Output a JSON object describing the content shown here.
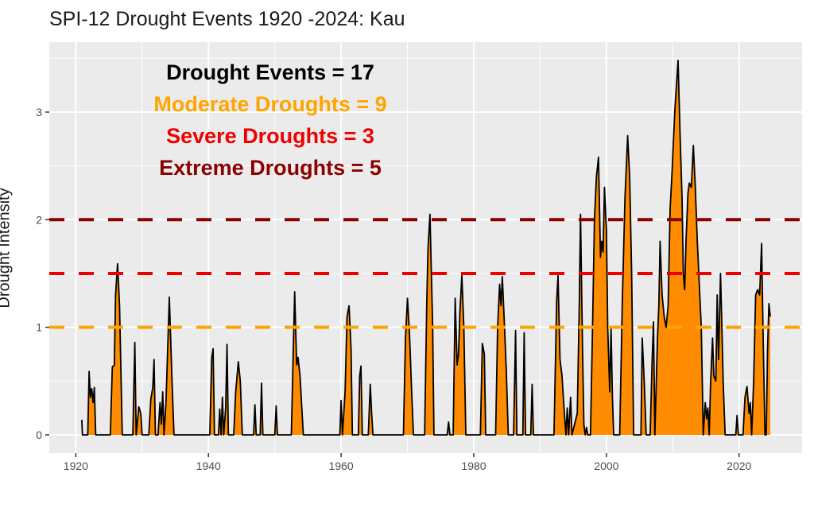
{
  "chart_data": {
    "type": "area",
    "title": "SPI-12 Drought Events 1920 -2024: Kau",
    "xlabel": "",
    "ylabel": "Drought Intensity",
    "xlim": [
      1916.0,
      2029.5
    ],
    "ylim": [
      -0.17,
      3.65
    ],
    "x_ticks": [
      1920,
      1940,
      1960,
      1980,
      2000,
      2020
    ],
    "x_tick_labels": [
      "1920",
      "1940",
      "1960",
      "1980",
      "2000",
      "2020"
    ],
    "y_ticks": [
      0,
      1,
      2,
      3
    ],
    "y_tick_labels": [
      "0",
      "1",
      "2",
      "3"
    ],
    "y_minor_ticks": [
      0.5,
      1.5,
      2.5,
      3.5
    ],
    "x_minor_ticks": [
      1930,
      1950,
      1970,
      1990,
      2010
    ],
    "grid": true,
    "fill_color": "#FF8C00",
    "line_color": "#000000",
    "panel_background": "#EBEBEB",
    "thresholds": [
      {
        "name": "Moderate",
        "value": 1.0,
        "color": "#FFA500",
        "style": "dashed"
      },
      {
        "name": "Severe",
        "value": 1.5,
        "color": "#EE0000",
        "style": "dashed"
      },
      {
        "name": "Extreme",
        "value": 2.0,
        "color": "#8B0000",
        "style": "dashed"
      }
    ],
    "annotations": [
      {
        "text": "Drought Events = 17",
        "color": "#000000"
      },
      {
        "text": "Moderate Droughts = 9",
        "color": "#FFA500"
      },
      {
        "text": "Severe Droughts = 3",
        "color": "#EE0000"
      },
      {
        "text": "Extreme Droughts = 5",
        "color": "#8B0000"
      }
    ],
    "series": [
      {
        "name": "SPI-12 drought intensity",
        "points": [
          [
            1920.9,
            0.14
          ],
          [
            1921.0,
            0.0
          ],
          [
            1921.8,
            0.0
          ],
          [
            1922.0,
            0.59
          ],
          [
            1922.2,
            0.35
          ],
          [
            1922.4,
            0.43
          ],
          [
            1922.6,
            0.3
          ],
          [
            1922.8,
            0.44
          ],
          [
            1923.0,
            0.0
          ],
          [
            1925.2,
            0.0
          ],
          [
            1925.5,
            0.63
          ],
          [
            1925.8,
            0.65
          ],
          [
            1926.0,
            1.3
          ],
          [
            1926.3,
            1.59
          ],
          [
            1926.6,
            1.2
          ],
          [
            1926.8,
            0.6
          ],
          [
            1927.0,
            0.0
          ],
          [
            1928.6,
            0.0
          ],
          [
            1928.9,
            0.86
          ],
          [
            1929.1,
            0.0
          ],
          [
            1929.5,
            0.26
          ],
          [
            1929.8,
            0.2
          ],
          [
            1930.0,
            0.0
          ],
          [
            1931.0,
            0.0
          ],
          [
            1931.3,
            0.33
          ],
          [
            1931.6,
            0.44
          ],
          [
            1931.8,
            0.7
          ],
          [
            1932.0,
            0.0
          ],
          [
            1932.4,
            0.0
          ],
          [
            1932.7,
            0.3
          ],
          [
            1932.9,
            0.1
          ],
          [
            1933.1,
            0.4
          ],
          [
            1933.3,
            0.0
          ],
          [
            1933.6,
            0.3
          ],
          [
            1934.1,
            1.28
          ],
          [
            1934.5,
            0.5
          ],
          [
            1934.8,
            0.0
          ],
          [
            1940.2,
            0.0
          ],
          [
            1940.5,
            0.72
          ],
          [
            1940.7,
            0.8
          ],
          [
            1940.9,
            0.0
          ],
          [
            1941.5,
            0.0
          ],
          [
            1941.7,
            0.24
          ],
          [
            1941.9,
            0.0
          ],
          [
            1942.1,
            0.35
          ],
          [
            1942.3,
            0.0
          ],
          [
            1942.6,
            0.25
          ],
          [
            1942.8,
            0.84
          ],
          [
            1943.0,
            0.0
          ],
          [
            1943.8,
            0.0
          ],
          [
            1944.1,
            0.4
          ],
          [
            1944.5,
            0.68
          ],
          [
            1944.8,
            0.5
          ],
          [
            1945.1,
            0.0
          ],
          [
            1946.8,
            0.0
          ],
          [
            1947.0,
            0.28
          ],
          [
            1947.2,
            0.0
          ],
          [
            1947.8,
            0.0
          ],
          [
            1948.0,
            0.48
          ],
          [
            1948.2,
            0.0
          ],
          [
            1950.0,
            0.0
          ],
          [
            1950.2,
            0.27
          ],
          [
            1950.4,
            0.0
          ],
          [
            1952.5,
            0.0
          ],
          [
            1952.8,
            0.8
          ],
          [
            1953.0,
            1.33
          ],
          [
            1953.3,
            0.65
          ],
          [
            1953.5,
            0.72
          ],
          [
            1953.8,
            0.55
          ],
          [
            1954.3,
            0.0
          ],
          [
            1959.8,
            0.0
          ],
          [
            1960.0,
            0.32
          ],
          [
            1960.2,
            0.0
          ],
          [
            1960.6,
            0.4
          ],
          [
            1960.9,
            1.1
          ],
          [
            1961.2,
            1.2
          ],
          [
            1961.5,
            0.8
          ],
          [
            1961.7,
            0.0
          ],
          [
            1962.6,
            0.0
          ],
          [
            1962.8,
            0.55
          ],
          [
            1963.0,
            0.64
          ],
          [
            1963.2,
            0.0
          ],
          [
            1964.1,
            0.0
          ],
          [
            1964.4,
            0.47
          ],
          [
            1964.6,
            0.2
          ],
          [
            1964.8,
            0.0
          ],
          [
            1969.4,
            0.0
          ],
          [
            1969.7,
            0.9
          ],
          [
            1970.0,
            1.27
          ],
          [
            1970.3,
            0.95
          ],
          [
            1970.6,
            0.45
          ],
          [
            1970.9,
            0.0
          ],
          [
            1972.6,
            0.0
          ],
          [
            1972.9,
            1.2
          ],
          [
            1973.1,
            1.73
          ],
          [
            1973.4,
            2.05
          ],
          [
            1973.8,
            1.0
          ],
          [
            1974.0,
            0.0
          ],
          [
            1976.0,
            0.0
          ],
          [
            1976.2,
            0.12
          ],
          [
            1976.4,
            0.0
          ],
          [
            1976.9,
            0.0
          ],
          [
            1977.2,
            1.27
          ],
          [
            1977.5,
            0.65
          ],
          [
            1977.7,
            0.75
          ],
          [
            1977.9,
            1.13
          ],
          [
            1978.2,
            1.48
          ],
          [
            1978.5,
            1.0
          ],
          [
            1978.8,
            0.0
          ],
          [
            1981.0,
            0.0
          ],
          [
            1981.3,
            0.85
          ],
          [
            1981.6,
            0.75
          ],
          [
            1981.8,
            0.0
          ],
          [
            1983.3,
            0.0
          ],
          [
            1983.6,
            1.0
          ],
          [
            1983.9,
            1.4
          ],
          [
            1984.1,
            1.2
          ],
          [
            1984.3,
            1.47
          ],
          [
            1984.6,
            1.05
          ],
          [
            1984.9,
            0.6
          ],
          [
            1985.2,
            0.0
          ],
          [
            1986.0,
            0.0
          ],
          [
            1986.3,
            0.97
          ],
          [
            1986.5,
            0.0
          ],
          [
            1987.4,
            0.0
          ],
          [
            1987.6,
            0.95
          ],
          [
            1987.8,
            0.0
          ],
          [
            1988.6,
            0.0
          ],
          [
            1988.8,
            0.47
          ],
          [
            1989.0,
            0.0
          ],
          [
            1992.1,
            0.0
          ],
          [
            1992.5,
            1.25
          ],
          [
            1992.7,
            1.48
          ],
          [
            1993.0,
            0.7
          ],
          [
            1993.3,
            0.55
          ],
          [
            1993.6,
            0.25
          ],
          [
            1993.9,
            0.0
          ],
          [
            1994.1,
            0.25
          ],
          [
            1994.3,
            0.0
          ],
          [
            1994.6,
            0.35
          ],
          [
            1994.8,
            0.0
          ],
          [
            1995.6,
            0.2
          ],
          [
            1995.9,
            1.2
          ],
          [
            1996.1,
            2.05
          ],
          [
            1996.4,
            0.8
          ],
          [
            1996.6,
            0.1
          ],
          [
            1996.8,
            0.0
          ],
          [
            1997.0,
            0.07
          ],
          [
            1997.2,
            0.0
          ],
          [
            1997.6,
            0.0
          ],
          [
            1997.9,
            0.95
          ],
          [
            1998.2,
            2.0
          ],
          [
            1998.5,
            2.4
          ],
          [
            1998.8,
            2.58
          ],
          [
            1999.1,
            1.65
          ],
          [
            1999.3,
            1.8
          ],
          [
            1999.5,
            1.7
          ],
          [
            1999.7,
            2.3
          ],
          [
            2000.0,
            1.9
          ],
          [
            2000.2,
            1.0
          ],
          [
            2000.5,
            0.4
          ],
          [
            2000.7,
            1.0
          ],
          [
            2000.9,
            0.35
          ],
          [
            2001.1,
            0.0
          ],
          [
            2002.0,
            0.0
          ],
          [
            2002.4,
            1.25
          ],
          [
            2002.8,
            2.2
          ],
          [
            2003.2,
            2.78
          ],
          [
            2003.5,
            2.4
          ],
          [
            2003.8,
            1.5
          ],
          [
            2004.1,
            0.0
          ],
          [
            2005.2,
            0.0
          ],
          [
            2005.4,
            0.9
          ],
          [
            2005.7,
            0.5
          ],
          [
            2006.0,
            0.0
          ],
          [
            2006.6,
            0.0
          ],
          [
            2006.9,
            0.7
          ],
          [
            2007.1,
            1.05
          ],
          [
            2007.3,
            0.0
          ],
          [
            2007.7,
            0.9
          ],
          [
            2007.9,
            1.2
          ],
          [
            2008.1,
            1.8
          ],
          [
            2008.4,
            1.3
          ],
          [
            2008.7,
            1.1
          ],
          [
            2009.0,
            1.0
          ],
          [
            2009.3,
            1.2
          ],
          [
            2009.6,
            2.1
          ],
          [
            2009.9,
            2.45
          ],
          [
            2010.3,
            3.0
          ],
          [
            2010.8,
            3.48
          ],
          [
            2011.1,
            2.8
          ],
          [
            2011.4,
            2.2
          ],
          [
            2011.6,
            1.5
          ],
          [
            2011.8,
            1.35
          ],
          [
            2012.0,
            1.8
          ],
          [
            2012.3,
            2.25
          ],
          [
            2012.5,
            2.34
          ],
          [
            2012.8,
            2.3
          ],
          [
            2013.1,
            2.69
          ],
          [
            2013.4,
            2.3
          ],
          [
            2013.7,
            1.8
          ],
          [
            2014.0,
            1.4
          ],
          [
            2014.3,
            1.0
          ],
          [
            2014.6,
            0.0
          ],
          [
            2014.9,
            0.3
          ],
          [
            2015.1,
            0.15
          ],
          [
            2015.3,
            0.25
          ],
          [
            2015.5,
            0.0
          ],
          [
            2015.7,
            0.48
          ],
          [
            2016.0,
            0.9
          ],
          [
            2016.2,
            0.55
          ],
          [
            2016.5,
            0.5
          ],
          [
            2016.7,
            1.3
          ],
          [
            2016.9,
            0.7
          ],
          [
            2017.2,
            1.5
          ],
          [
            2017.4,
            1.05
          ],
          [
            2017.6,
            0.5
          ],
          [
            2017.9,
            0.0
          ],
          [
            2019.5,
            0.0
          ],
          [
            2019.7,
            0.18
          ],
          [
            2019.9,
            0.0
          ],
          [
            2020.6,
            0.0
          ],
          [
            2020.9,
            0.35
          ],
          [
            2021.2,
            0.45
          ],
          [
            2021.5,
            0.2
          ],
          [
            2021.7,
            0.3
          ],
          [
            2021.9,
            0.0
          ],
          [
            2022.2,
            0.5
          ],
          [
            2022.5,
            1.3
          ],
          [
            2022.8,
            1.35
          ],
          [
            2023.1,
            1.3
          ],
          [
            2023.4,
            1.78
          ],
          [
            2023.6,
            1.0
          ],
          [
            2023.9,
            0.0
          ],
          [
            2024.1,
            0.0
          ],
          [
            2024.3,
            0.8
          ],
          [
            2024.5,
            1.22
          ],
          [
            2024.7,
            1.1
          ]
        ]
      }
    ]
  }
}
